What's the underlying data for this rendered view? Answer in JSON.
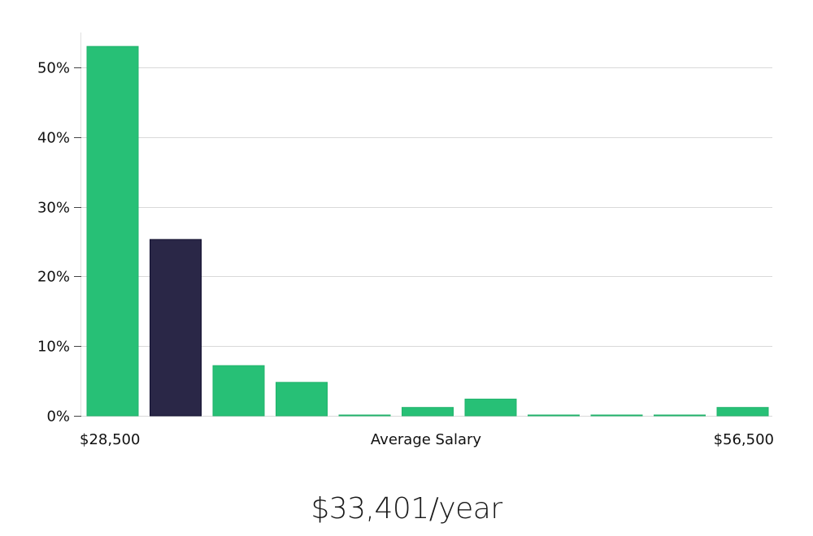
{
  "chart_data": {
    "type": "bar",
    "categories": [
      "1",
      "2",
      "3",
      "4",
      "5",
      "6",
      "7",
      "8",
      "9",
      "10",
      "11"
    ],
    "values": [
      53,
      25.3,
      7.2,
      4.8,
      0.1,
      1.2,
      2.4,
      0.1,
      0.1,
      0.1,
      1.2
    ],
    "highlight_index": 1,
    "colors": {
      "bar": "#27c076",
      "bar_border": "#22b36c",
      "highlight": "#2a2747",
      "highlight_border": "#121030",
      "grid": "#d9d9d9",
      "axis": "#e0e0e0"
    },
    "ylim": [
      0,
      55
    ],
    "yticks": [
      0,
      10,
      20,
      30,
      40,
      50
    ],
    "ytick_labels": [
      "0%",
      "10%",
      "20%",
      "30%",
      "40%",
      "50%"
    ],
    "x_min_label": "$28,500",
    "x_center_label": "Average Salary",
    "x_max_label": "$56,500",
    "grid": true
  },
  "summary": {
    "salary": "$33,401/year"
  }
}
